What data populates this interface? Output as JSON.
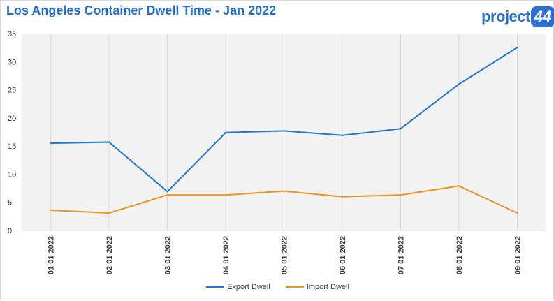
{
  "title": "Los Angeles Container Dwell Time - Jan 2022",
  "logo": {
    "text": "project",
    "badge": "44"
  },
  "colors": {
    "export": "#1f77d4",
    "import": "#f0921e",
    "title": "#1f6fd6"
  },
  "chart_data": {
    "type": "line",
    "title": "Los Angeles Container Dwell Time - Jan 2022",
    "xlabel": "",
    "ylabel": "",
    "categories": [
      "01 01 2022",
      "02 01 2022",
      "03 01 2022",
      "04 01 2022",
      "05 01 2022",
      "06 01 2022",
      "07 01 2022",
      "08 01 2022",
      "09 01 2022"
    ],
    "series": [
      {
        "name": "Export Dwell",
        "values": [
          15.5,
          15.7,
          6.9,
          17.4,
          17.7,
          16.9,
          18.1,
          26.0,
          32.5
        ]
      },
      {
        "name": "Import Dwell",
        "values": [
          3.6,
          3.1,
          6.3,
          6.3,
          7.0,
          6.0,
          6.3,
          7.9,
          3.1
        ]
      }
    ],
    "ylim": [
      0,
      35
    ],
    "yticks": [
      0,
      5,
      10,
      15,
      20,
      25,
      30,
      35
    ],
    "grid": "vertical lines at categories",
    "legend": "bottom-center"
  }
}
